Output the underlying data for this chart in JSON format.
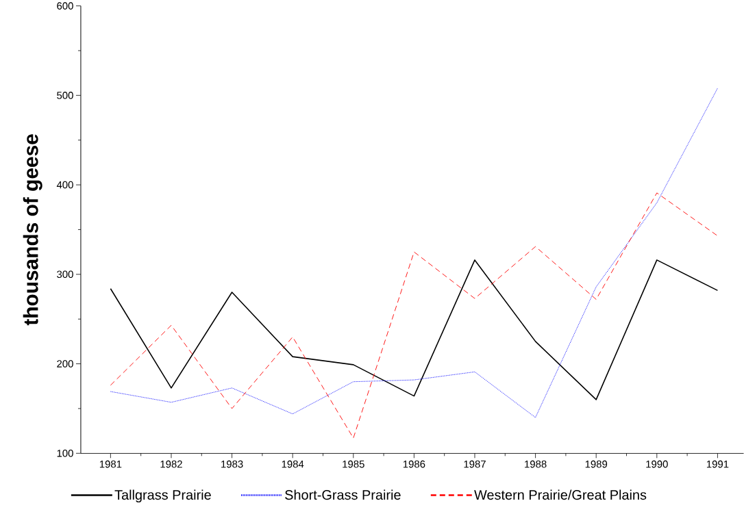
{
  "chart_data": {
    "type": "line",
    "ylabel": "thousands of geese",
    "categories": [
      "1981",
      "1982",
      "1983",
      "1984",
      "1985",
      "1986",
      "1987",
      "1988",
      "1989",
      "1990",
      "1991"
    ],
    "ylim": [
      100,
      600
    ],
    "yticks": [
      100,
      200,
      300,
      400,
      500,
      600
    ],
    "grid": false,
    "legend": "bottom",
    "marker": "none",
    "series": [
      {
        "name": "Tallgrass Prairie",
        "color": "#000000",
        "line_style": "solid",
        "values": [
          284,
          173,
          280,
          208,
          199,
          164,
          316,
          225,
          160,
          316,
          282
        ]
      },
      {
        "name": "Short-Grass Prairie",
        "color": "#0000ff",
        "line_style": "dotted",
        "values": [
          169,
          157,
          173,
          144,
          180,
          182,
          191,
          140,
          286,
          380,
          508
        ]
      },
      {
        "name": "Western Prairie/Great Plains",
        "color": "#ff0000",
        "line_style": "dashed",
        "values": [
          176,
          243,
          150,
          230,
          117,
          325,
          273,
          331,
          272,
          391,
          343
        ]
      }
    ]
  }
}
